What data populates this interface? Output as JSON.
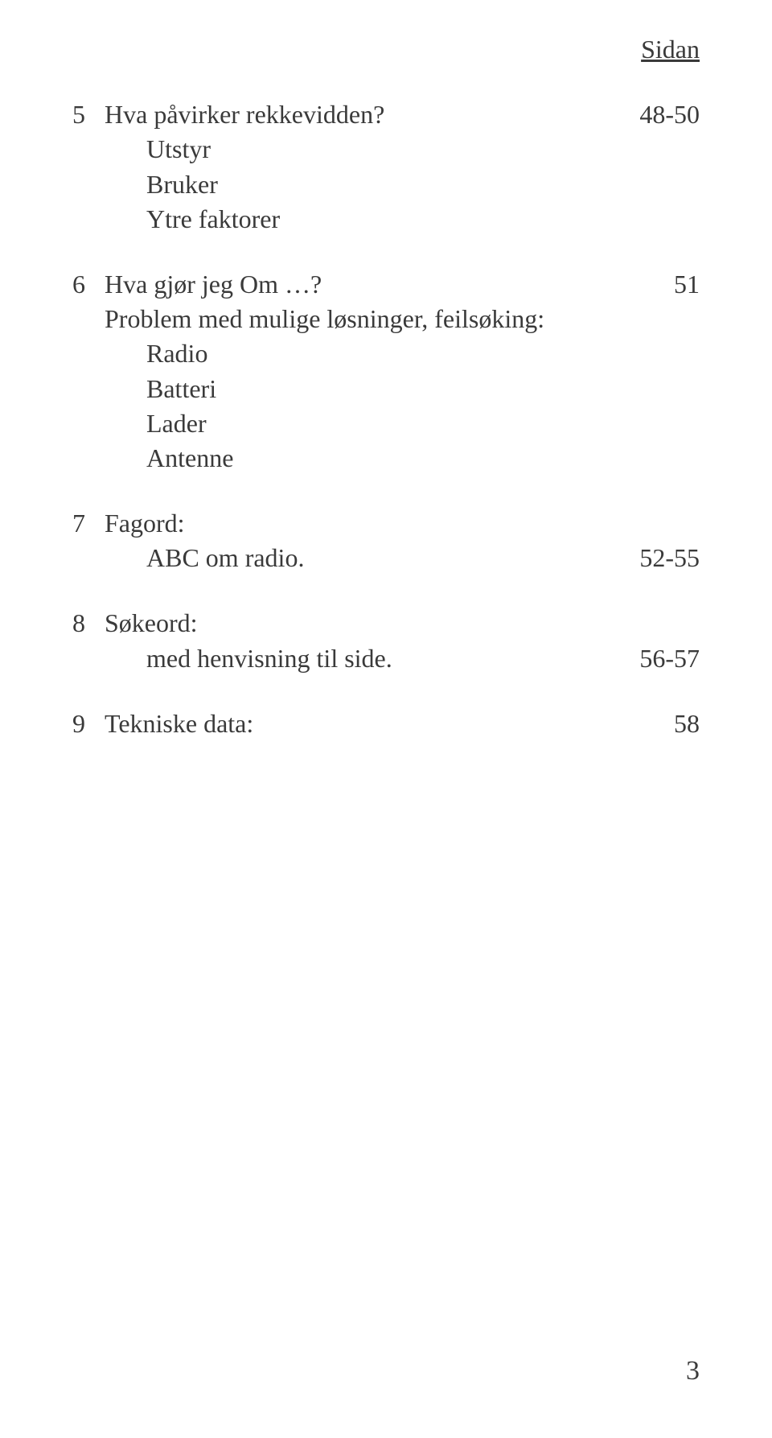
{
  "header": "Sidan",
  "entries": [
    {
      "num": "5",
      "title": "Hva påvirker rekkevidden?",
      "page": "48-50",
      "subs": [
        "Utstyr",
        "Bruker",
        "Ytre faktorer"
      ]
    },
    {
      "num": "6",
      "title": "Hva gjør jeg Om …?",
      "page": "51",
      "subtitle": "Problem med mulige løsninger, feilsøking:",
      "subs": [
        "Radio",
        "Batteri",
        "Lader",
        "Antenne"
      ]
    },
    {
      "num": "7",
      "title": "Fagord:",
      "rows": [
        {
          "label": "ABC om radio.",
          "page": "52-55"
        }
      ]
    },
    {
      "num": "8",
      "title": "Søkeord:",
      "rows": [
        {
          "label": "med henvisning til side.",
          "page": "56-57"
        }
      ]
    },
    {
      "num": "9",
      "title": "Tekniske data:",
      "page": "58"
    }
  ],
  "page_number": "3"
}
